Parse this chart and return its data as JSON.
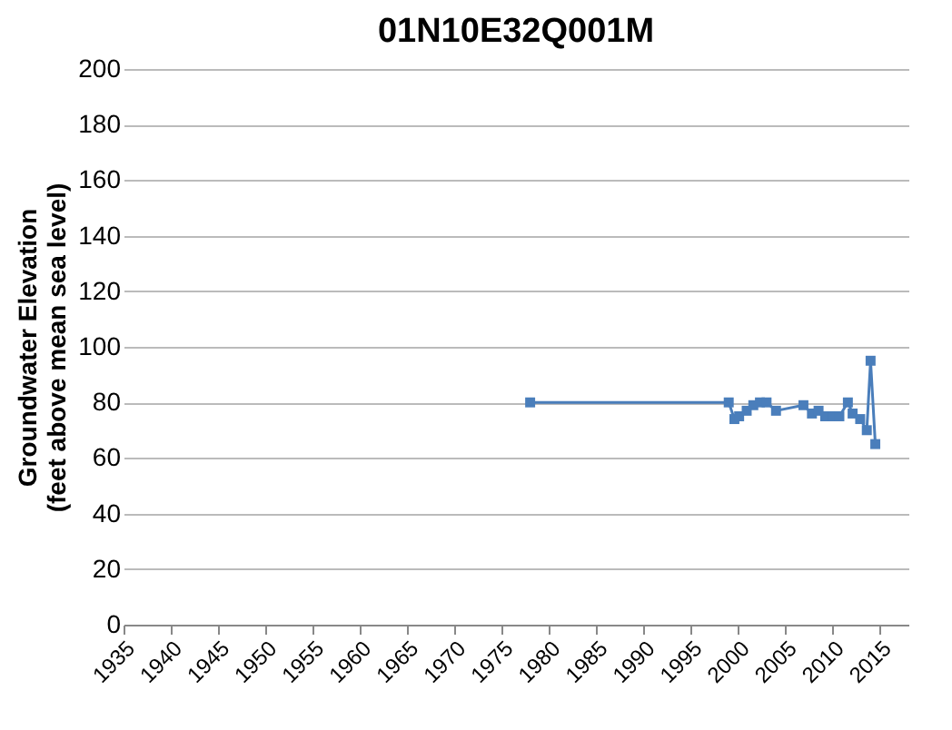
{
  "chart_data": {
    "type": "line",
    "title": "01N10E32Q001M",
    "ylabel": "Groundwater Elevation\n(feet above mean sea level)",
    "x": [
      1978.0,
      1999.0,
      1999.6,
      2000.1,
      2000.9,
      2001.6,
      2002.3,
      2003.0,
      2004.0,
      2006.9,
      2007.8,
      2008.5,
      2009.2,
      2010.0,
      2010.7,
      2011.6,
      2012.1,
      2012.9,
      2013.6,
      2014.0,
      2014.5
    ],
    "series": [
      {
        "color": "#4a7ebb",
        "values": [
          80,
          80,
          74,
          75,
          77,
          79,
          80,
          80,
          77,
          79,
          76,
          77,
          75,
          75,
          75,
          80,
          76,
          74,
          70,
          95,
          65
        ]
      }
    ],
    "xlim": [
      1935,
      2018
    ],
    "xticks": [
      1935,
      1940,
      1945,
      1950,
      1955,
      1960,
      1965,
      1970,
      1975,
      1980,
      1985,
      1990,
      1995,
      2000,
      2005,
      2010,
      2015
    ],
    "ylim": [
      0,
      200
    ],
    "yticks": [
      0,
      20,
      40,
      60,
      80,
      100,
      120,
      140,
      160,
      180,
      200
    ],
    "grid": "y",
    "marker": "square",
    "line_style": "solid"
  }
}
